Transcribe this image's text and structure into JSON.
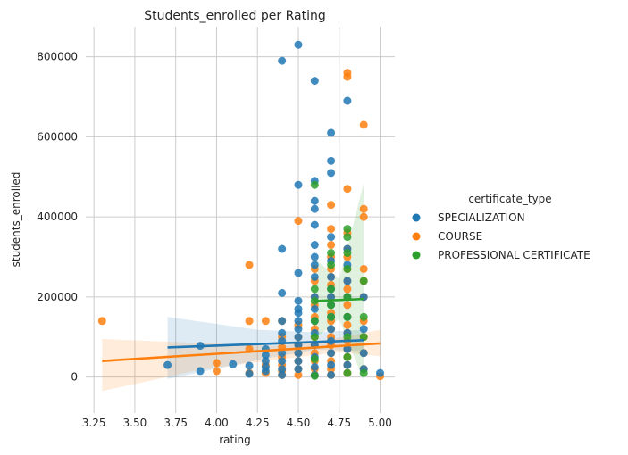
{
  "chart_data": {
    "type": "scatter",
    "title": "Students_enrolled per Rating",
    "xlabel": "rating",
    "ylabel": "students_enrolled",
    "xlim": [
      3.2,
      5.09
    ],
    "ylim": [
      -90000,
      875000
    ],
    "xticks": [
      3.25,
      3.5,
      3.75,
      4.0,
      4.25,
      4.5,
      4.75,
      5.0
    ],
    "xtick_labels": [
      "3.25",
      "3.50",
      "3.75",
      "4.00",
      "4.25",
      "4.50",
      "4.75",
      "5.00"
    ],
    "yticks": [
      0,
      200000,
      400000,
      600000,
      800000
    ],
    "ytick_labels": [
      "0",
      "200000",
      "400000",
      "600000",
      "800000"
    ],
    "grid": true,
    "legend": {
      "title": "certificate_type",
      "placement": "right"
    },
    "series": [
      {
        "name": "SPECIALIZATION",
        "color": "#1f77b4",
        "points": [
          [
            3.7,
            30000
          ],
          [
            3.9,
            15000
          ],
          [
            3.9,
            78000
          ],
          [
            4.1,
            32000
          ],
          [
            4.2,
            28000
          ],
          [
            4.2,
            8000
          ],
          [
            4.3,
            70000
          ],
          [
            4.3,
            55000
          ],
          [
            4.3,
            40000
          ],
          [
            4.3,
            25000
          ],
          [
            4.3,
            15000
          ],
          [
            4.4,
            790000
          ],
          [
            4.4,
            320000
          ],
          [
            4.4,
            210000
          ],
          [
            4.4,
            140000
          ],
          [
            4.4,
            110000
          ],
          [
            4.4,
            90000
          ],
          [
            4.4,
            60000
          ],
          [
            4.4,
            40000
          ],
          [
            4.4,
            20000
          ],
          [
            4.4,
            5000
          ],
          [
            4.5,
            830000
          ],
          [
            4.5,
            480000
          ],
          [
            4.5,
            260000
          ],
          [
            4.5,
            190000
          ],
          [
            4.5,
            170000
          ],
          [
            4.5,
            160000
          ],
          [
            4.5,
            140000
          ],
          [
            4.5,
            120000
          ],
          [
            4.5,
            100000
          ],
          [
            4.5,
            80000
          ],
          [
            4.5,
            60000
          ],
          [
            4.5,
            40000
          ],
          [
            4.5,
            20000
          ],
          [
            4.6,
            740000
          ],
          [
            4.6,
            490000
          ],
          [
            4.6,
            440000
          ],
          [
            4.6,
            420000
          ],
          [
            4.6,
            380000
          ],
          [
            4.6,
            330000
          ],
          [
            4.6,
            300000
          ],
          [
            4.6,
            280000
          ],
          [
            4.6,
            250000
          ],
          [
            4.6,
            200000
          ],
          [
            4.6,
            170000
          ],
          [
            4.6,
            140000
          ],
          [
            4.6,
            110000
          ],
          [
            4.6,
            80000
          ],
          [
            4.6,
            50000
          ],
          [
            4.6,
            25000
          ],
          [
            4.6,
            5000
          ],
          [
            4.7,
            610000
          ],
          [
            4.7,
            540000
          ],
          [
            4.7,
            510000
          ],
          [
            4.7,
            350000
          ],
          [
            4.7,
            290000
          ],
          [
            4.7,
            250000
          ],
          [
            4.7,
            220000
          ],
          [
            4.7,
            200000
          ],
          [
            4.7,
            180000
          ],
          [
            4.7,
            150000
          ],
          [
            4.7,
            120000
          ],
          [
            4.7,
            90000
          ],
          [
            4.7,
            60000
          ],
          [
            4.7,
            30000
          ],
          [
            4.7,
            5000
          ],
          [
            4.8,
            690000
          ],
          [
            4.8,
            320000
          ],
          [
            4.8,
            280000
          ],
          [
            4.8,
            240000
          ],
          [
            4.8,
            200000
          ],
          [
            4.8,
            150000
          ],
          [
            4.8,
            110000
          ],
          [
            4.8,
            70000
          ],
          [
            4.8,
            30000
          ],
          [
            4.9,
            200000
          ],
          [
            4.9,
            120000
          ],
          [
            4.9,
            60000
          ],
          [
            4.9,
            20000
          ],
          [
            5.0,
            10000
          ]
        ],
        "trend": {
          "x": [
            3.7,
            4.9
          ],
          "y": [
            74000,
            92000
          ]
        },
        "ci_upper": [
          150000,
          118000,
          112000,
          118000
        ],
        "ci_lower": [
          -5000,
          42000,
          68000,
          66000
        ],
        "ci_x": [
          3.7,
          4.25,
          4.6,
          4.9
        ]
      },
      {
        "name": "COURSE",
        "color": "#ff7f0e",
        "points": [
          [
            3.3,
            140000
          ],
          [
            4.0,
            35000
          ],
          [
            4.0,
            15000
          ],
          [
            4.2,
            280000
          ],
          [
            4.2,
            140000
          ],
          [
            4.2,
            70000
          ],
          [
            4.2,
            10000
          ],
          [
            4.3,
            140000
          ],
          [
            4.3,
            30000
          ],
          [
            4.3,
            10000
          ],
          [
            4.4,
            140000
          ],
          [
            4.4,
            100000
          ],
          [
            4.4,
            75000
          ],
          [
            4.4,
            50000
          ],
          [
            4.4,
            30000
          ],
          [
            4.4,
            15000
          ],
          [
            4.4,
            5000
          ],
          [
            4.5,
            390000
          ],
          [
            4.5,
            130000
          ],
          [
            4.5,
            100000
          ],
          [
            4.5,
            80000
          ],
          [
            4.5,
            60000
          ],
          [
            4.5,
            40000
          ],
          [
            4.5,
            20000
          ],
          [
            4.5,
            5000
          ],
          [
            4.6,
            270000
          ],
          [
            4.6,
            240000
          ],
          [
            4.6,
            200000
          ],
          [
            4.6,
            180000
          ],
          [
            4.6,
            150000
          ],
          [
            4.6,
            120000
          ],
          [
            4.6,
            100000
          ],
          [
            4.6,
            80000
          ],
          [
            4.6,
            60000
          ],
          [
            4.6,
            40000
          ],
          [
            4.6,
            20000
          ],
          [
            4.6,
            5000
          ],
          [
            4.7,
            430000
          ],
          [
            4.7,
            370000
          ],
          [
            4.7,
            330000
          ],
          [
            4.7,
            300000
          ],
          [
            4.7,
            270000
          ],
          [
            4.7,
            250000
          ],
          [
            4.7,
            230000
          ],
          [
            4.7,
            200000
          ],
          [
            4.7,
            180000
          ],
          [
            4.7,
            160000
          ],
          [
            4.7,
            140000
          ],
          [
            4.7,
            120000
          ],
          [
            4.7,
            100000
          ],
          [
            4.7,
            80000
          ],
          [
            4.7,
            60000
          ],
          [
            4.7,
            40000
          ],
          [
            4.7,
            20000
          ],
          [
            4.7,
            5000
          ],
          [
            4.8,
            760000
          ],
          [
            4.8,
            750000
          ],
          [
            4.8,
            470000
          ],
          [
            4.8,
            360000
          ],
          [
            4.8,
            320000
          ],
          [
            4.8,
            300000
          ],
          [
            4.8,
            270000
          ],
          [
            4.8,
            240000
          ],
          [
            4.8,
            220000
          ],
          [
            4.8,
            200000
          ],
          [
            4.8,
            180000
          ],
          [
            4.8,
            150000
          ],
          [
            4.8,
            130000
          ],
          [
            4.8,
            110000
          ],
          [
            4.8,
            90000
          ],
          [
            4.8,
            70000
          ],
          [
            4.8,
            50000
          ],
          [
            4.8,
            30000
          ],
          [
            4.8,
            10000
          ],
          [
            4.9,
            630000
          ],
          [
            4.9,
            420000
          ],
          [
            4.9,
            400000
          ],
          [
            4.9,
            270000
          ],
          [
            4.9,
            240000
          ],
          [
            4.9,
            200000
          ],
          [
            4.9,
            140000
          ],
          [
            4.9,
            100000
          ],
          [
            4.9,
            60000
          ],
          [
            4.9,
            20000
          ],
          [
            5.0,
            2000
          ]
        ],
        "trend": {
          "x": [
            3.3,
            5.0
          ],
          "y": [
            40000,
            84000
          ]
        },
        "ci_upper": [
          95000,
          85000,
          78000,
          98000,
          118000
        ],
        "ci_lower": [
          -35000,
          18000,
          45000,
          62000,
          52000
        ],
        "ci_x": [
          3.3,
          3.9,
          4.4,
          4.75,
          5.0
        ]
      },
      {
        "name": "PROFESSIONAL CERTIFICATE",
        "color": "#2ca02c",
        "points": [
          [
            4.6,
            480000
          ],
          [
            4.6,
            220000
          ],
          [
            4.6,
            190000
          ],
          [
            4.6,
            140000
          ],
          [
            4.6,
            100000
          ],
          [
            4.6,
            45000
          ],
          [
            4.6,
            3000
          ],
          [
            4.7,
            310000
          ],
          [
            4.7,
            280000
          ],
          [
            4.7,
            220000
          ],
          [
            4.7,
            180000
          ],
          [
            4.7,
            150000
          ],
          [
            4.8,
            370000
          ],
          [
            4.8,
            350000
          ],
          [
            4.8,
            310000
          ],
          [
            4.8,
            270000
          ],
          [
            4.8,
            200000
          ],
          [
            4.8,
            150000
          ],
          [
            4.8,
            100000
          ],
          [
            4.8,
            50000
          ],
          [
            4.8,
            10000
          ],
          [
            4.9,
            240000
          ],
          [
            4.9,
            150000
          ],
          [
            4.9,
            100000
          ],
          [
            4.9,
            10000
          ]
        ],
        "trend": {
          "x": [
            4.6,
            4.9
          ],
          "y": [
            190000,
            195000
          ]
        },
        "ci_upper": [
          295000,
          245000,
          485000
        ],
        "ci_lower": [
          95000,
          145000,
          -10000
        ],
        "ci_x": [
          4.6,
          4.75,
          4.9
        ]
      }
    ]
  }
}
